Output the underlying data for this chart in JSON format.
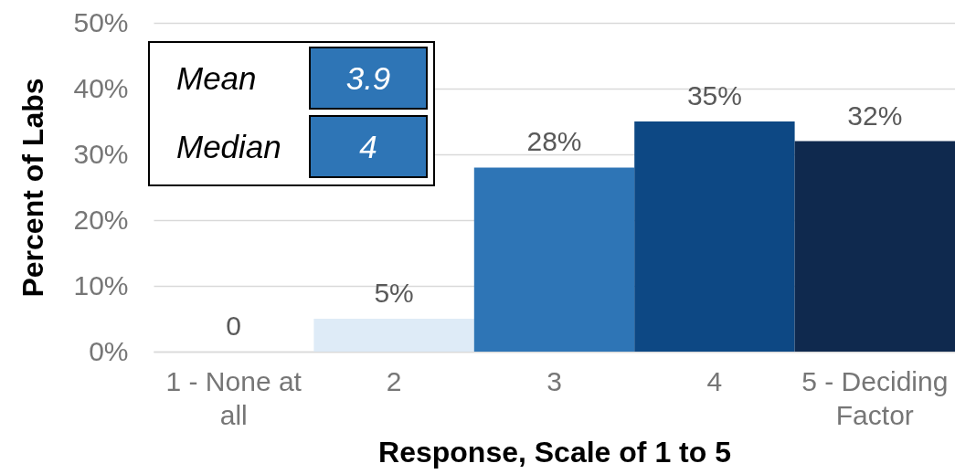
{
  "chart_data": {
    "type": "bar",
    "xlabel": "Response, Scale of 1 to 5",
    "ylabel": "Percent of Labs",
    "categories": [
      "1 - None at all",
      "2",
      "3",
      "4",
      "5 - Deciding Factor"
    ],
    "values": [
      0,
      5,
      28,
      35,
      32
    ],
    "colors": [
      "#ffffff",
      "#deebf7",
      "#2e75b6",
      "#0d4884",
      "#0f294e"
    ],
    "value_labels": [
      "0",
      "5%",
      "28%",
      "35%",
      "32%"
    ],
    "ylim": [
      0,
      50
    ],
    "yticks": [
      {
        "value": 0,
        "label": "0%"
      },
      {
        "value": 10,
        "label": "10%"
      },
      {
        "value": 20,
        "label": "20%"
      },
      {
        "value": 30,
        "label": "30%"
      },
      {
        "value": 40,
        "label": "40%"
      },
      {
        "value": 50,
        "label": "50%"
      }
    ],
    "grid": "y",
    "annotations": [
      "Mean",
      "3.9",
      "Median",
      "4"
    ]
  }
}
